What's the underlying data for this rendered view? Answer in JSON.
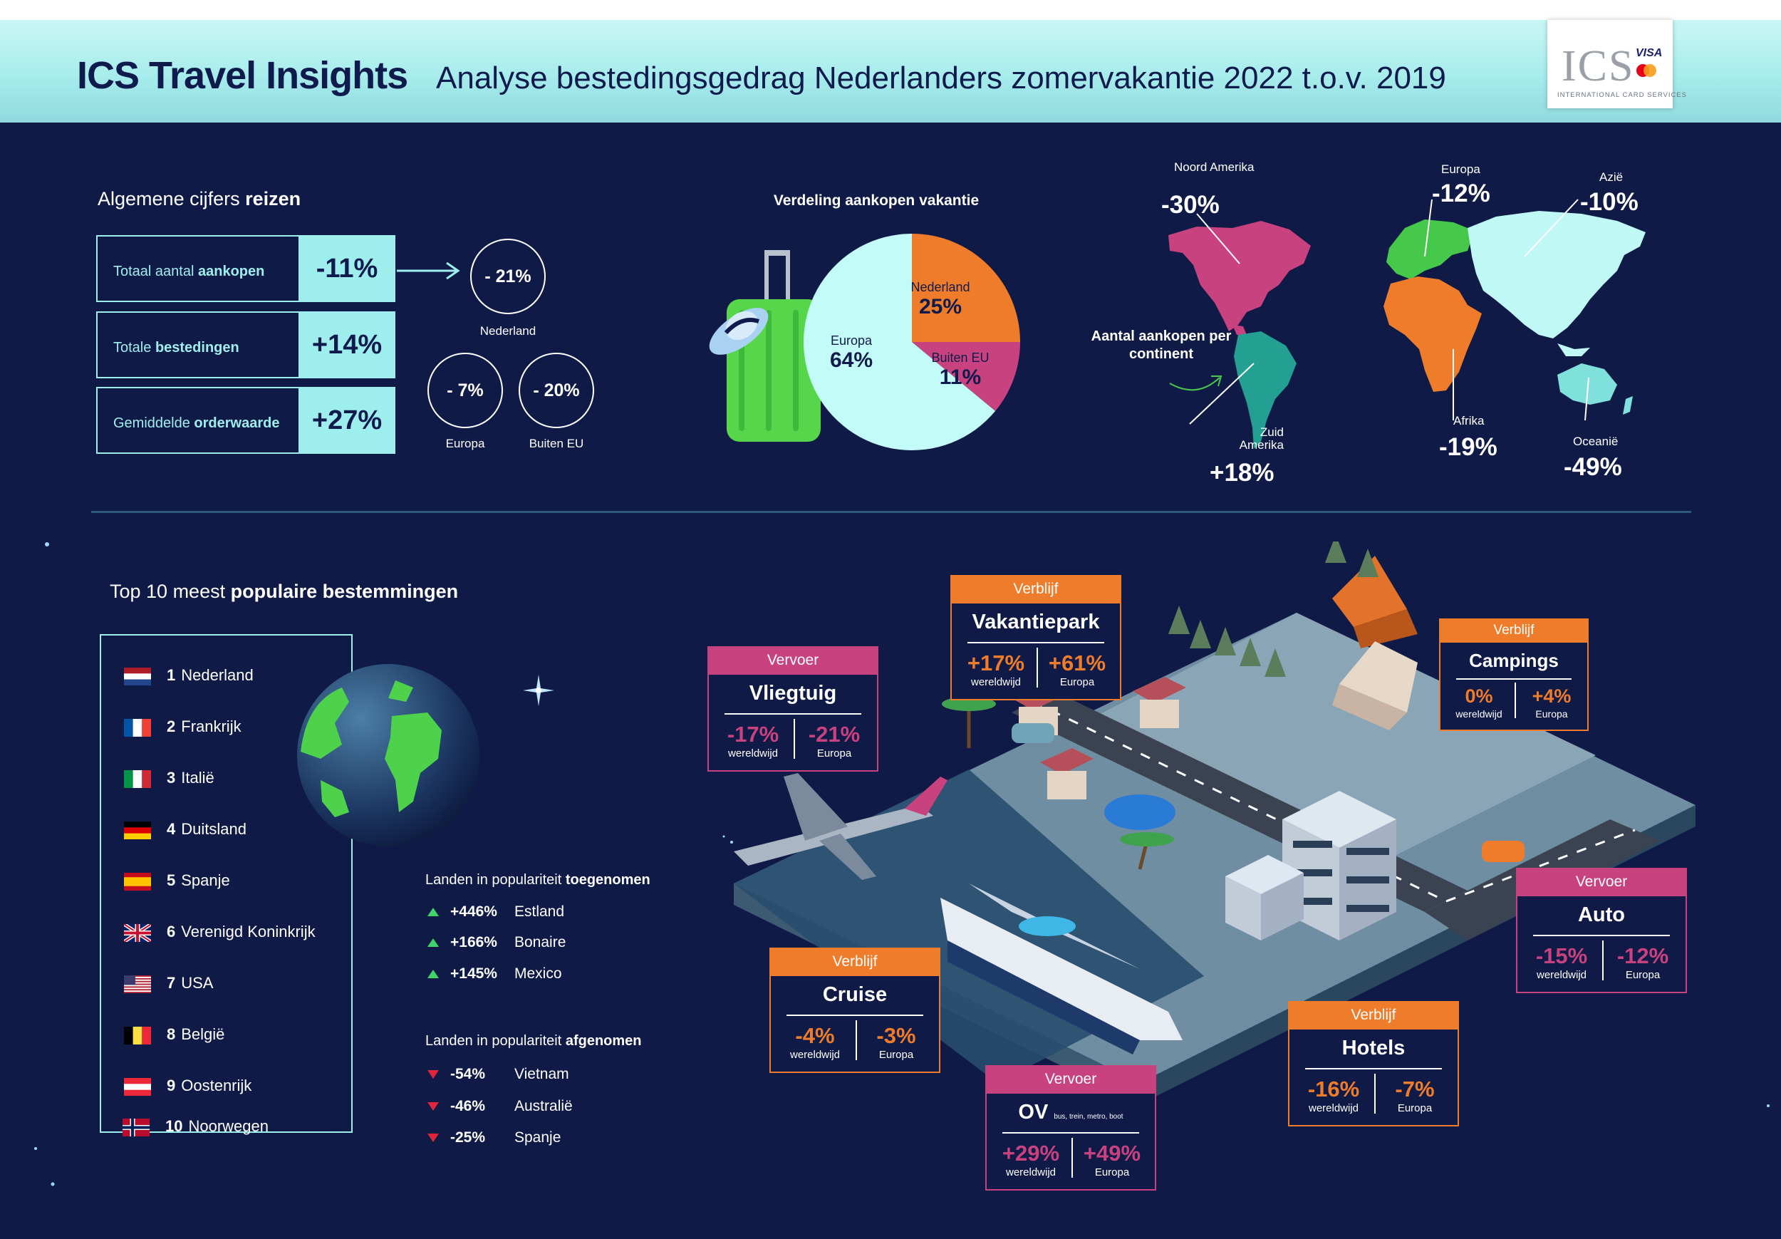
{
  "header": {
    "title": "ICS Travel Insights",
    "subtitle": "Analyse bestedingsgedrag Nederlanders zomervakantie 2022 t.o.v. 2019",
    "logo": {
      "text": "ICS",
      "visa": "VISA",
      "tagline": "INTERNATIONAL CARD SERVICES"
    }
  },
  "general": {
    "heading_pre": "Algemene cijfers ",
    "heading_bold": "reizen",
    "rows": [
      {
        "label_pre": "Totaal aantal ",
        "label_bold": "aankopen",
        "value": "-11%"
      },
      {
        "label_pre": "Totale ",
        "label_bold": "bestedingen",
        "value": "+14%"
      },
      {
        "label_pre": "Gemiddelde ",
        "label_bold": "orderwaarde",
        "value": "+27%"
      }
    ],
    "circles": [
      {
        "value": "- 21%",
        "label": "Nederland"
      },
      {
        "value": "- 7%",
        "label": "Europa"
      },
      {
        "value": "- 20%",
        "label": "Buiten EU"
      }
    ]
  },
  "chart_data": {
    "type": "pie",
    "title": "Verdeling aankopen vakantie",
    "slices": [
      {
        "label": "Nederland",
        "value": 25,
        "display": "25%",
        "color": "#ee7c2a"
      },
      {
        "label": "Buiten EU",
        "value": 11,
        "display": "11%",
        "color": "#c8427f"
      },
      {
        "label": "Europa",
        "value": 64,
        "display": "64%",
        "color": "#c2fbf8"
      }
    ]
  },
  "map": {
    "caption": "Aantal aankopen per continent",
    "continents": [
      {
        "name": "Noord Amerika",
        "value": "-30%",
        "color": "#c8427f"
      },
      {
        "name": "Europa",
        "value": "-12%",
        "color": "#46c94a"
      },
      {
        "name": "Azië",
        "value": "-10%",
        "color": "#bff8f5"
      },
      {
        "name": "Zuid Amerika",
        "value": "+18%",
        "color": "#23a091"
      },
      {
        "name": "Afrika",
        "value": "-19%",
        "color": "#ee7c2a"
      },
      {
        "name": "Oceanië",
        "value": "-49%",
        "color": "#7fe0dc"
      }
    ]
  },
  "top10": {
    "heading_pre": "Top 10 meest ",
    "heading_bold": "populaire bestemmingen",
    "items": [
      {
        "rank": "1",
        "name": "Nederland",
        "flag": "nl"
      },
      {
        "rank": "2",
        "name": "Frankrijk",
        "flag": "fr"
      },
      {
        "rank": "3",
        "name": "Italië",
        "flag": "it"
      },
      {
        "rank": "4",
        "name": "Duitsland",
        "flag": "de"
      },
      {
        "rank": "5",
        "name": "Spanje",
        "flag": "es"
      },
      {
        "rank": "6",
        "name": "Verenigd Koninkrijk",
        "flag": "uk"
      },
      {
        "rank": "7",
        "name": "USA",
        "flag": "us"
      },
      {
        "rank": "8",
        "name": "België",
        "flag": "be"
      },
      {
        "rank": "9",
        "name": "Oostenrijk",
        "flag": "at"
      },
      {
        "rank": "10",
        "name": "Noorwegen",
        "flag": "no"
      }
    ]
  },
  "trends": {
    "up_heading_pre": "Landen in populariteit ",
    "up_heading_bold": "toegenomen",
    "up": [
      {
        "pct": "+446%",
        "country": "Estland"
      },
      {
        "pct": "+166%",
        "country": "Bonaire"
      },
      {
        "pct": "+145%",
        "country": "Mexico"
      }
    ],
    "down_heading_pre": "Landen in populariteit ",
    "down_heading_bold": "afgenomen",
    "down": [
      {
        "pct": "-54%",
        "country": "Vietnam"
      },
      {
        "pct": "-46%",
        "country": "Australië"
      },
      {
        "pct": "-25%",
        "country": "Spanje"
      }
    ]
  },
  "cards": {
    "vakantiepark": {
      "tag": "Verblijf",
      "title": "Vakantiepark",
      "v1": "+17%",
      "c1": "wereldwijd",
      "v2": "+61%",
      "c2": "Europa"
    },
    "vliegtuig": {
      "tag": "Vervoer",
      "title": "Vliegtuig",
      "v1": "-17%",
      "c1": "wereldwijd",
      "v2": "-21%",
      "c2": "Europa"
    },
    "campings": {
      "tag": "Verblijf",
      "title": "Campings",
      "v1": "0%",
      "c1": "wereldwijd",
      "v2": "+4%",
      "c2": "Europa"
    },
    "auto": {
      "tag": "Vervoer",
      "title": "Auto",
      "v1": "-15%",
      "c1": "wereldwijd",
      "v2": "-12%",
      "c2": "Europa"
    },
    "cruise": {
      "tag": "Verblijf",
      "title": "Cruise",
      "v1": "-4%",
      "c1": "wereldwijd",
      "v2": "-3%",
      "c2": "Europa"
    },
    "hotels": {
      "tag": "Verblijf",
      "title": "Hotels",
      "v1": "-16%",
      "c1": "wereldwijd",
      "v2": "-7%",
      "c2": "Europa"
    },
    "ov": {
      "tag": "Vervoer",
      "title": "OV",
      "subtitle": "bus, trein, metro, boot",
      "v1": "+29%",
      "c1": "wereldwijd",
      "v2": "+49%",
      "c2": "Europa"
    }
  }
}
